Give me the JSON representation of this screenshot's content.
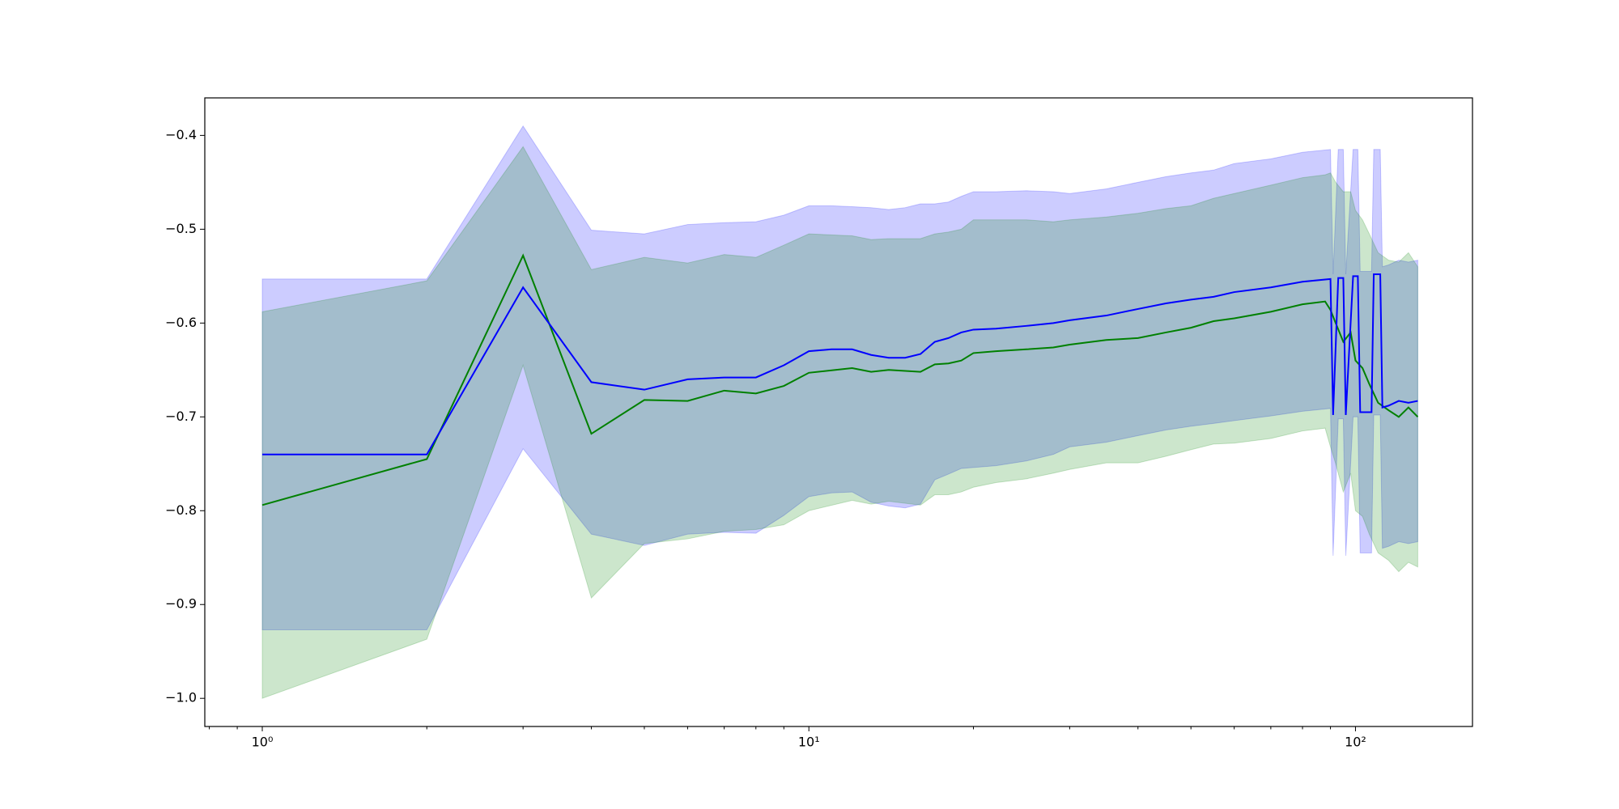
{
  "chart_data": {
    "type": "line",
    "xscale": "log",
    "grid": false,
    "xlim": [
      0.785,
      163.7
    ],
    "ylim": [
      -1.03,
      -0.36
    ],
    "xticks": [
      {
        "value": 1,
        "label": "10⁰"
      },
      {
        "value": 10,
        "label": "10¹"
      },
      {
        "value": 100,
        "label": "10²"
      }
    ],
    "xminorticks": [
      0.8,
      0.9,
      2,
      3,
      4,
      5,
      6,
      7,
      8,
      9,
      20,
      30,
      40,
      50,
      60,
      70,
      80,
      90
    ],
    "yticks": [
      {
        "value": -1.0,
        "label": "−1.0"
      },
      {
        "value": -0.9,
        "label": "−0.9"
      },
      {
        "value": -0.8,
        "label": "−0.8"
      },
      {
        "value": -0.7,
        "label": "−0.7"
      },
      {
        "value": -0.6,
        "label": "−0.6"
      },
      {
        "value": -0.5,
        "label": "−0.5"
      },
      {
        "value": -0.4,
        "label": "−0.4"
      }
    ],
    "series": [
      {
        "color": "#0000ff",
        "band_opacity": 0.2,
        "x": [
          1,
          2,
          3,
          4,
          5,
          6,
          7,
          8,
          9,
          10,
          11,
          12,
          13,
          14,
          15,
          16,
          17,
          18,
          19,
          20,
          22,
          25,
          28,
          30,
          35,
          40,
          45,
          50,
          55,
          60,
          70,
          80,
          90,
          91,
          93,
          95,
          96,
          99,
          101,
          102,
          107,
          108,
          111,
          112,
          115,
          120,
          125,
          130
        ],
        "values": [
          -0.74,
          -0.74,
          -0.562,
          -0.663,
          -0.671,
          -0.66,
          -0.658,
          -0.658,
          -0.645,
          -0.63,
          -0.628,
          -0.628,
          -0.634,
          -0.637,
          -0.637,
          -0.633,
          -0.62,
          -0.616,
          -0.61,
          -0.607,
          -0.606,
          -0.603,
          -0.6,
          -0.597,
          -0.592,
          -0.585,
          -0.579,
          -0.575,
          -0.572,
          -0.567,
          -0.562,
          -0.556,
          -0.553,
          -0.698,
          -0.552,
          -0.552,
          -0.698,
          -0.55,
          -0.55,
          -0.695,
          -0.695,
          -0.548,
          -0.548,
          -0.69,
          -0.688,
          -0.683,
          -0.685,
          -0.683
        ],
        "upper": [
          -0.553,
          -0.553,
          -0.39,
          -0.501,
          -0.505,
          -0.495,
          -0.493,
          -0.492,
          -0.485,
          -0.475,
          -0.475,
          -0.476,
          -0.477,
          -0.479,
          -0.477,
          -0.473,
          -0.473,
          -0.471,
          -0.465,
          -0.46,
          -0.46,
          -0.459,
          -0.46,
          -0.462,
          -0.457,
          -0.45,
          -0.444,
          -0.44,
          -0.437,
          -0.43,
          -0.425,
          -0.418,
          -0.415,
          -0.548,
          -0.415,
          -0.415,
          -0.548,
          -0.415,
          -0.415,
          -0.545,
          -0.545,
          -0.415,
          -0.415,
          -0.54,
          -0.538,
          -0.533,
          -0.535,
          -0.533
        ],
        "lower": [
          -0.927,
          -0.927,
          -0.734,
          -0.825,
          -0.837,
          -0.825,
          -0.823,
          -0.824,
          -0.805,
          -0.785,
          -0.781,
          -0.78,
          -0.791,
          -0.795,
          -0.797,
          -0.793,
          -0.767,
          -0.761,
          -0.755,
          -0.754,
          -0.752,
          -0.747,
          -0.74,
          -0.732,
          -0.727,
          -0.72,
          -0.714,
          -0.71,
          -0.707,
          -0.704,
          -0.699,
          -0.694,
          -0.691,
          -0.848,
          -0.702,
          -0.702,
          -0.848,
          -0.7,
          -0.7,
          -0.845,
          -0.845,
          -0.698,
          -0.698,
          -0.84,
          -0.838,
          -0.833,
          -0.835,
          -0.833
        ]
      },
      {
        "color": "#008000",
        "band_opacity": 0.2,
        "x": [
          1,
          2,
          3,
          4,
          5,
          6,
          7,
          8,
          9,
          10,
          12,
          13,
          14,
          16,
          17,
          18,
          19,
          20,
          22,
          25,
          28,
          30,
          35,
          40,
          45,
          50,
          55,
          60,
          70,
          80,
          88,
          90,
          92,
          95,
          98,
          100,
          103,
          106,
          110,
          115,
          120,
          125,
          130
        ],
        "values": [
          -0.794,
          -0.745,
          -0.528,
          -0.718,
          -0.682,
          -0.683,
          -0.672,
          -0.675,
          -0.667,
          -0.653,
          -0.648,
          -0.652,
          -0.65,
          -0.652,
          -0.644,
          -0.643,
          -0.64,
          -0.632,
          -0.63,
          -0.628,
          -0.626,
          -0.623,
          -0.618,
          -0.616,
          -0.61,
          -0.605,
          -0.598,
          -0.595,
          -0.588,
          -0.58,
          -0.577,
          -0.586,
          -0.6,
          -0.62,
          -0.61,
          -0.64,
          -0.648,
          -0.665,
          -0.685,
          -0.693,
          -0.7,
          -0.69,
          -0.7
        ],
        "upper": [
          -0.588,
          -0.555,
          -0.412,
          -0.543,
          -0.53,
          -0.536,
          -0.527,
          -0.53,
          -0.517,
          -0.505,
          -0.507,
          -0.511,
          -0.51,
          -0.51,
          -0.505,
          -0.503,
          -0.5,
          -0.49,
          -0.49,
          -0.49,
          -0.492,
          -0.49,
          -0.487,
          -0.483,
          -0.478,
          -0.475,
          -0.467,
          -0.462,
          -0.453,
          -0.445,
          -0.442,
          -0.44,
          -0.45,
          -0.46,
          -0.46,
          -0.48,
          -0.49,
          -0.505,
          -0.525,
          -0.533,
          -0.535,
          -0.525,
          -0.54
        ],
        "lower": [
          -1.0,
          -0.937,
          -0.645,
          -0.893,
          -0.835,
          -0.83,
          -0.822,
          -0.82,
          -0.815,
          -0.8,
          -0.789,
          -0.793,
          -0.79,
          -0.794,
          -0.783,
          -0.783,
          -0.78,
          -0.775,
          -0.77,
          -0.766,
          -0.76,
          -0.756,
          -0.749,
          -0.749,
          -0.742,
          -0.735,
          -0.729,
          -0.728,
          -0.723,
          -0.715,
          -0.712,
          -0.732,
          -0.75,
          -0.78,
          -0.76,
          -0.8,
          -0.806,
          -0.825,
          -0.845,
          -0.853,
          -0.865,
          -0.855,
          -0.86
        ]
      }
    ]
  }
}
